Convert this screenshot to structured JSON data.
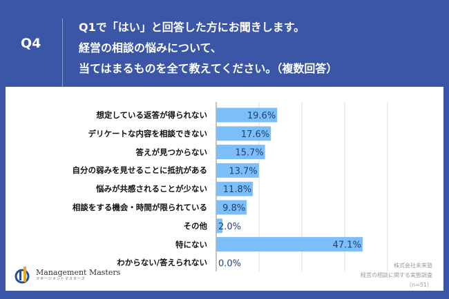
{
  "header": {
    "q_number": "Q4",
    "lines": [
      "Q1で「はい」と回答した方にお聞きします。",
      "経営の相談の悩みについて、",
      "当てはまるものを全て教えてください。（複数回答）"
    ]
  },
  "chart_data": {
    "type": "bar",
    "orientation": "horizontal",
    "categories": [
      "想定している返答が得られない",
      "デリケートな内容を相談できない",
      "答えが見つからない",
      "自分の弱みを見せることに抵抗がある",
      "悩みが共感されることが少ない",
      "相談をする機会・時間が限られている",
      "その他",
      "特にない",
      "わからない/答えられない"
    ],
    "values": [
      19.6,
      17.6,
      15.7,
      13.7,
      11.8,
      9.8,
      2.0,
      47.1,
      0.0
    ],
    "value_labels": [
      "19.6%",
      "17.6%",
      "15.7%",
      "13.7%",
      "11.8%",
      "9.8%",
      "2.0%",
      "47.1%",
      "0.0%"
    ],
    "bar_color": "#7cbef7",
    "label_color": "#1f3f7a",
    "grid": true
  },
  "footer": {
    "logo": "Management Masters",
    "logo_sub": "マネージメントマスターズ",
    "source": [
      "株式会社未来塾",
      "経営の相談に関する実態調査",
      "（n=51）"
    ]
  }
}
